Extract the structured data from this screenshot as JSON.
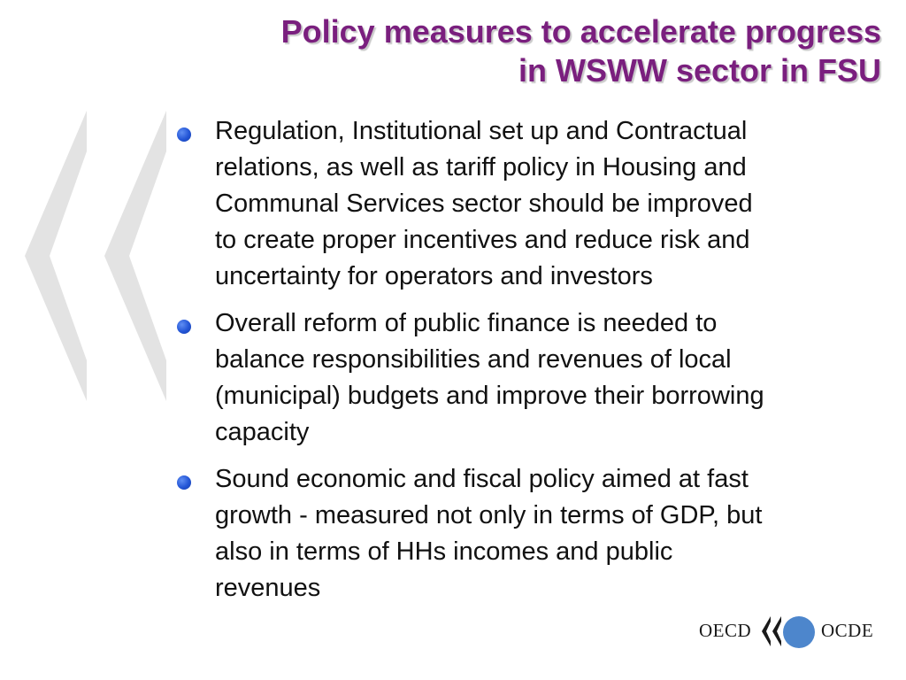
{
  "slide": {
    "title_line1": "Policy measures to accelerate progress",
    "title_line2": "in WSWW sector in FSU",
    "bullets": [
      {
        "lines": [
          "Regulation, Institutional set up and Contractual",
          "relations, as well as tariff policy  in Housing and",
          "Communal Services sector should be improved",
          "to create proper incentives and reduce risk and",
          "uncertainty for operators and investors"
        ]
      },
      {
        "lines": [
          "Overall reform of public finance is needed to",
          "balance responsibilities and revenues of local",
          "(municipal) budgets and improve their borrowing",
          "capacity"
        ]
      },
      {
        "lines": [
          "Sound economic and fiscal policy aimed at fast",
          "growth - measured not only in terms of GDP, but",
          "also in terms of HHs incomes and public",
          "revenues"
        ]
      }
    ]
  },
  "logo": {
    "left_text": "OECD",
    "right_text": "OCDE",
    "circle_color": "#4d86cc"
  },
  "colors": {
    "title": "#7a1f7e",
    "bullet": "#2355d6",
    "watermark": "#e3e3e3",
    "text": "#111111"
  },
  "icons": {
    "watermark": "double-chevron-left-icon",
    "logo_mark": "double-chevron-left-icon"
  }
}
